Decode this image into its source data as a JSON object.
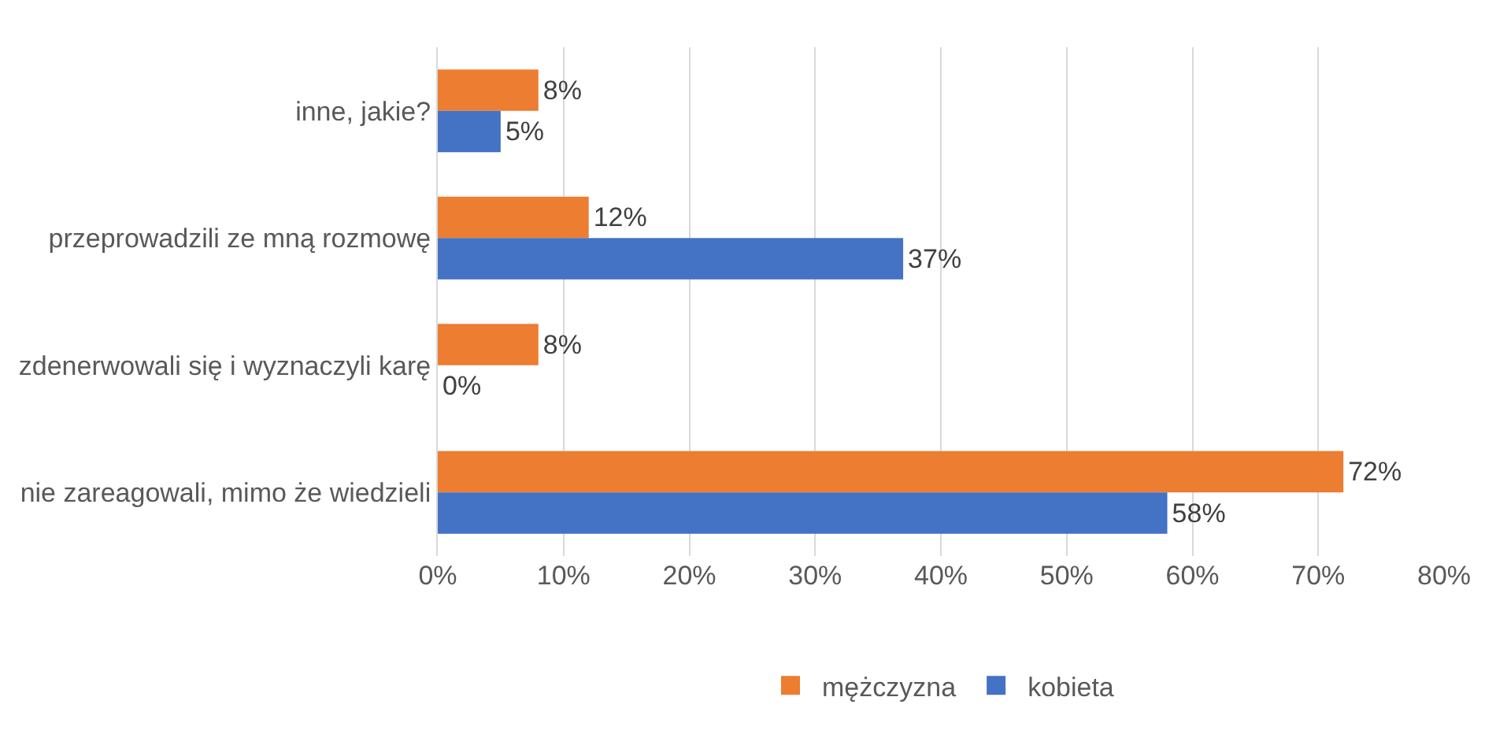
{
  "chart_data": {
    "type": "bar",
    "orientation": "horizontal",
    "categories": [
      "inne, jakie?",
      "przeprowadzili ze mną rozmowę",
      "zdenerwowali się i wyznaczyli karę",
      "nie zareagowali, mimo że wiedzieli"
    ],
    "series": [
      {
        "name": "mężczyzna",
        "color": "#ed7d31",
        "values": [
          8,
          12,
          8,
          72
        ],
        "value_labels": [
          "8%",
          "12%",
          "8%",
          "72%"
        ]
      },
      {
        "name": "kobieta",
        "color": "#4472c4",
        "values": [
          5,
          37,
          0,
          58
        ],
        "value_labels": [
          "5%",
          "37%",
          "0%",
          "58%"
        ]
      }
    ],
    "xlim": [
      0,
      80
    ],
    "xticks": [
      {
        "value": 0,
        "label": "0%"
      },
      {
        "value": 10,
        "label": "10%"
      },
      {
        "value": 20,
        "label": "20%"
      },
      {
        "value": 30,
        "label": "30%"
      },
      {
        "value": 40,
        "label": "40%"
      },
      {
        "value": 50,
        "label": "50%"
      },
      {
        "value": 60,
        "label": "60%"
      },
      {
        "value": 70,
        "label": "70%"
      },
      {
        "value": 80,
        "label": "80%"
      }
    ],
    "grid": "x",
    "legend": "bottom"
  }
}
